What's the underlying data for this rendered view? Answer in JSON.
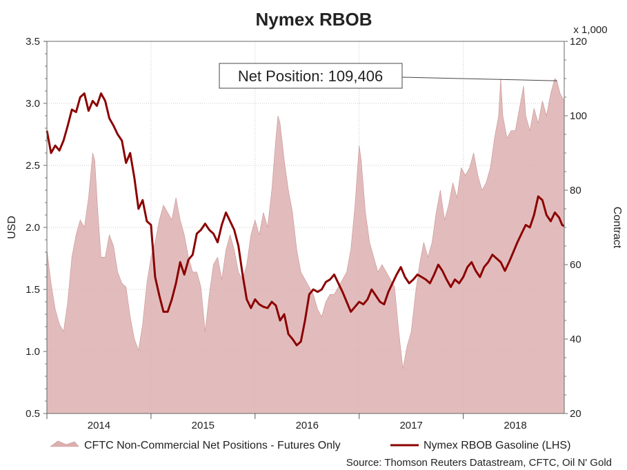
{
  "chart_data": {
    "type": "line",
    "title": "Nymex RBOB",
    "y_left_label": "USD",
    "y_right_label": "Contract",
    "y_right_multiplier": "x 1,000",
    "ylim_left": [
      0.5,
      3.5
    ],
    "ylim_right": [
      20,
      120
    ],
    "y_left_ticks": [
      "0.5",
      "1.0",
      "1.5",
      "2.0",
      "2.5",
      "3.0",
      "3.5"
    ],
    "y_right_ticks": [
      "20",
      "40",
      "60",
      "80",
      "100",
      "120"
    ],
    "x_tick_labels": [
      "2014",
      "2015",
      "2016",
      "2017",
      "2018"
    ],
    "x_range": [
      2013.5,
      2018.47
    ],
    "grid": true,
    "legend_position": "bottom",
    "annotation": {
      "text": "Net Position: 109,406",
      "x": 2018.4,
      "y_right": 109.4
    },
    "source": "Source: Thomson Reuters Datastream, CFTC, Oil N' Gold",
    "colors": {
      "price_line": "#8b0000",
      "area_fill": "#ddb0b0",
      "area_edge": "#c79090"
    },
    "series": [
      {
        "name": "CFTC Non-Commercial Net Positions - Futures Only",
        "axis": "right",
        "kind": "area",
        "points": [
          [
            2013.5,
            64
          ],
          [
            2013.54,
            55
          ],
          [
            2013.58,
            48
          ],
          [
            2013.62,
            44
          ],
          [
            2013.66,
            42
          ],
          [
            2013.7,
            50
          ],
          [
            2013.74,
            62
          ],
          [
            2013.78,
            68
          ],
          [
            2013.82,
            72
          ],
          [
            2013.86,
            70
          ],
          [
            2013.9,
            78
          ],
          [
            2013.94,
            90
          ],
          [
            2013.96,
            88
          ],
          [
            2013.99,
            74
          ],
          [
            2014.02,
            62
          ],
          [
            2014.06,
            62
          ],
          [
            2014.1,
            68
          ],
          [
            2014.14,
            65
          ],
          [
            2014.18,
            58
          ],
          [
            2014.22,
            55
          ],
          [
            2014.26,
            54
          ],
          [
            2014.3,
            46
          ],
          [
            2014.34,
            40
          ],
          [
            2014.38,
            37
          ],
          [
            2014.42,
            44
          ],
          [
            2014.46,
            55
          ],
          [
            2014.5,
            62
          ],
          [
            2014.54,
            66
          ],
          [
            2014.58,
            72
          ],
          [
            2014.62,
            76
          ],
          [
            2014.66,
            74
          ],
          [
            2014.7,
            72
          ],
          [
            2014.74,
            78
          ],
          [
            2014.78,
            72
          ],
          [
            2014.82,
            68
          ],
          [
            2014.86,
            62
          ],
          [
            2014.9,
            58
          ],
          [
            2014.94,
            58
          ],
          [
            2014.98,
            54
          ],
          [
            2015.02,
            42
          ],
          [
            2015.06,
            52
          ],
          [
            2015.1,
            60
          ],
          [
            2015.14,
            62
          ],
          [
            2015.18,
            56
          ],
          [
            2015.22,
            64
          ],
          [
            2015.26,
            68
          ],
          [
            2015.3,
            64
          ],
          [
            2015.34,
            58
          ],
          [
            2015.38,
            56
          ],
          [
            2015.42,
            60
          ],
          [
            2015.46,
            68
          ],
          [
            2015.5,
            72
          ],
          [
            2015.54,
            68
          ],
          [
            2015.58,
            74
          ],
          [
            2015.62,
            70
          ],
          [
            2015.66,
            80
          ],
          [
            2015.7,
            94
          ],
          [
            2015.72,
            100
          ],
          [
            2015.74,
            98
          ],
          [
            2015.78,
            88
          ],
          [
            2015.82,
            80
          ],
          [
            2015.86,
            74
          ],
          [
            2015.9,
            64
          ],
          [
            2015.94,
            58
          ],
          [
            2015.98,
            56
          ],
          [
            2016.02,
            54
          ],
          [
            2016.06,
            52
          ],
          [
            2016.1,
            48
          ],
          [
            2016.14,
            46
          ],
          [
            2016.18,
            50
          ],
          [
            2016.22,
            52
          ],
          [
            2016.26,
            52
          ],
          [
            2016.3,
            54
          ],
          [
            2016.34,
            56
          ],
          [
            2016.38,
            58
          ],
          [
            2016.42,
            64
          ],
          [
            2016.46,
            76
          ],
          [
            2016.5,
            92
          ],
          [
            2016.52,
            88
          ],
          [
            2016.56,
            74
          ],
          [
            2016.6,
            66
          ],
          [
            2016.64,
            62
          ],
          [
            2016.68,
            58
          ],
          [
            2016.72,
            60
          ],
          [
            2016.76,
            58
          ],
          [
            2016.8,
            56
          ],
          [
            2016.84,
            54
          ],
          [
            2016.88,
            42
          ],
          [
            2016.92,
            32
          ],
          [
            2016.96,
            38
          ],
          [
            2017.0,
            42
          ],
          [
            2017.04,
            52
          ],
          [
            2017.08,
            60
          ],
          [
            2017.12,
            66
          ],
          [
            2017.16,
            62
          ],
          [
            2017.2,
            66
          ],
          [
            2017.24,
            74
          ],
          [
            2017.28,
            80
          ],
          [
            2017.32,
            72
          ],
          [
            2017.36,
            76
          ],
          [
            2017.4,
            82
          ],
          [
            2017.44,
            78
          ],
          [
            2017.48,
            86
          ],
          [
            2017.52,
            84
          ],
          [
            2017.56,
            86
          ],
          [
            2017.6,
            90
          ],
          [
            2017.64,
            84
          ],
          [
            2017.68,
            80
          ],
          [
            2017.72,
            82
          ],
          [
            2017.76,
            86
          ],
          [
            2017.8,
            94
          ],
          [
            2017.84,
            100
          ],
          [
            2017.86,
            110
          ],
          [
            2017.88,
            100
          ],
          [
            2017.92,
            94
          ],
          [
            2017.96,
            96
          ],
          [
            2018.0,
            96
          ],
          [
            2018.04,
            102
          ],
          [
            2018.08,
            108
          ],
          [
            2018.1,
            100
          ],
          [
            2018.14,
            96
          ],
          [
            2018.18,
            102
          ],
          [
            2018.22,
            98
          ],
          [
            2018.26,
            104
          ],
          [
            2018.3,
            100
          ],
          [
            2018.34,
            106
          ],
          [
            2018.38,
            110
          ],
          [
            2018.4,
            109.4
          ],
          [
            2018.43,
            106
          ],
          [
            2018.47,
            104
          ]
        ]
      },
      {
        "name": "Nymex RBOB Gasoline (LHS)",
        "axis": "left",
        "kind": "line",
        "points": [
          [
            2013.5,
            2.78
          ],
          [
            2013.54,
            2.6
          ],
          [
            2013.58,
            2.66
          ],
          [
            2013.62,
            2.62
          ],
          [
            2013.66,
            2.7
          ],
          [
            2013.7,
            2.82
          ],
          [
            2013.74,
            2.95
          ],
          [
            2013.78,
            2.93
          ],
          [
            2013.82,
            3.05
          ],
          [
            2013.86,
            3.08
          ],
          [
            2013.9,
            2.94
          ],
          [
            2013.94,
            3.02
          ],
          [
            2013.98,
            2.98
          ],
          [
            2014.02,
            3.08
          ],
          [
            2014.06,
            3.02
          ],
          [
            2014.1,
            2.88
          ],
          [
            2014.14,
            2.82
          ],
          [
            2014.18,
            2.75
          ],
          [
            2014.22,
            2.7
          ],
          [
            2014.26,
            2.52
          ],
          [
            2014.3,
            2.6
          ],
          [
            2014.34,
            2.4
          ],
          [
            2014.38,
            2.15
          ],
          [
            2014.42,
            2.22
          ],
          [
            2014.46,
            2.05
          ],
          [
            2014.5,
            2.02
          ],
          [
            2014.54,
            1.6
          ],
          [
            2014.58,
            1.45
          ],
          [
            2014.62,
            1.32
          ],
          [
            2014.66,
            1.32
          ],
          [
            2014.7,
            1.42
          ],
          [
            2014.74,
            1.55
          ],
          [
            2014.78,
            1.72
          ],
          [
            2014.82,
            1.62
          ],
          [
            2014.86,
            1.74
          ],
          [
            2014.9,
            1.78
          ],
          [
            2014.94,
            1.95
          ],
          [
            2014.98,
            1.98
          ],
          [
            2015.02,
            2.03
          ],
          [
            2015.06,
            1.98
          ],
          [
            2015.1,
            1.95
          ],
          [
            2015.14,
            1.88
          ],
          [
            2015.18,
            2.02
          ],
          [
            2015.22,
            2.12
          ],
          [
            2015.26,
            2.05
          ],
          [
            2015.3,
            1.98
          ],
          [
            2015.34,
            1.85
          ],
          [
            2015.38,
            1.62
          ],
          [
            2015.42,
            1.42
          ],
          [
            2015.46,
            1.35
          ],
          [
            2015.5,
            1.42
          ],
          [
            2015.54,
            1.38
          ],
          [
            2015.58,
            1.36
          ],
          [
            2015.62,
            1.35
          ],
          [
            2015.66,
            1.4
          ],
          [
            2015.7,
            1.37
          ],
          [
            2015.74,
            1.25
          ],
          [
            2015.78,
            1.3
          ],
          [
            2015.82,
            1.14
          ],
          [
            2015.86,
            1.1
          ],
          [
            2015.9,
            1.05
          ],
          [
            2015.94,
            1.08
          ],
          [
            2015.98,
            1.25
          ],
          [
            2016.02,
            1.46
          ],
          [
            2016.06,
            1.5
          ],
          [
            2016.1,
            1.48
          ],
          [
            2016.14,
            1.5
          ],
          [
            2016.18,
            1.56
          ],
          [
            2016.22,
            1.58
          ],
          [
            2016.26,
            1.62
          ],
          [
            2016.3,
            1.55
          ],
          [
            2016.34,
            1.48
          ],
          [
            2016.38,
            1.4
          ],
          [
            2016.42,
            1.32
          ],
          [
            2016.46,
            1.36
          ],
          [
            2016.5,
            1.4
          ],
          [
            2016.54,
            1.38
          ],
          [
            2016.58,
            1.42
          ],
          [
            2016.62,
            1.5
          ],
          [
            2016.66,
            1.45
          ],
          [
            2016.7,
            1.4
          ],
          [
            2016.74,
            1.38
          ],
          [
            2016.78,
            1.48
          ],
          [
            2016.82,
            1.55
          ],
          [
            2016.86,
            1.62
          ],
          [
            2016.9,
            1.68
          ],
          [
            2016.94,
            1.6
          ],
          [
            2016.98,
            1.55
          ],
          [
            2017.02,
            1.58
          ],
          [
            2017.06,
            1.62
          ],
          [
            2017.1,
            1.6
          ],
          [
            2017.14,
            1.58
          ],
          [
            2017.18,
            1.55
          ],
          [
            2017.22,
            1.62
          ],
          [
            2017.26,
            1.7
          ],
          [
            2017.3,
            1.65
          ],
          [
            2017.34,
            1.58
          ],
          [
            2017.38,
            1.52
          ],
          [
            2017.42,
            1.58
          ],
          [
            2017.46,
            1.55
          ],
          [
            2017.5,
            1.6
          ],
          [
            2017.54,
            1.68
          ],
          [
            2017.58,
            1.72
          ],
          [
            2017.62,
            1.65
          ],
          [
            2017.66,
            1.6
          ],
          [
            2017.7,
            1.68
          ],
          [
            2017.74,
            1.72
          ],
          [
            2017.78,
            1.78
          ],
          [
            2017.82,
            1.75
          ],
          [
            2017.86,
            1.72
          ],
          [
            2017.9,
            1.65
          ],
          [
            2017.94,
            1.72
          ],
          [
            2017.98,
            1.8
          ],
          [
            2018.02,
            1.88
          ],
          [
            2018.06,
            1.95
          ],
          [
            2018.1,
            2.02
          ],
          [
            2018.14,
            2.0
          ],
          [
            2018.18,
            2.1
          ],
          [
            2018.22,
            2.25
          ],
          [
            2018.26,
            2.22
          ],
          [
            2018.3,
            2.1
          ],
          [
            2018.34,
            2.05
          ],
          [
            2018.38,
            2.12
          ],
          [
            2018.42,
            2.08
          ],
          [
            2018.45,
            2.02
          ],
          [
            2018.47,
            2.01
          ]
        ]
      }
    ]
  }
}
